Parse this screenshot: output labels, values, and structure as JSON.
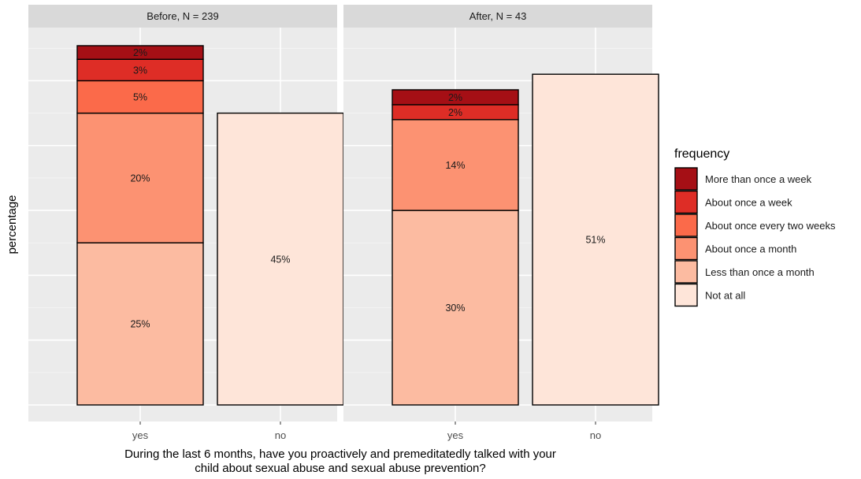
{
  "chart_data": {
    "type": "bar",
    "stacked": true,
    "ylabel": "percentage",
    "xlabel_lines": [
      "During the last 6 months, have you proactively and premeditatedly talked with your",
      "child about sexual abuse and sexual abuse prevention?"
    ],
    "categories": [
      "yes",
      "no"
    ],
    "ylim": [
      0,
      56
    ],
    "legend": {
      "title": "frequency",
      "position": "right",
      "entries": [
        {
          "label": "More than once a week",
          "color": "#A50F15"
        },
        {
          "label": "About once a week",
          "color": "#DE2D26"
        },
        {
          "label": "About once every two weeks",
          "color": "#FB6A4A"
        },
        {
          "label": "About once a month",
          "color": "#FC9272"
        },
        {
          "label": "Less than once a month",
          "color": "#FCBBA1"
        },
        {
          "label": "Not at all",
          "color": "#FEE5D9"
        }
      ]
    },
    "panels": [
      {
        "title": "Before, N = 239",
        "bars": [
          {
            "category": "yes",
            "segments": [
              {
                "level": "Less than once a month",
                "value": 25,
                "label": "25%"
              },
              {
                "level": "About once a month",
                "value": 20,
                "label": "20%"
              },
              {
                "level": "About once every two weeks",
                "value": 5,
                "label": "5%"
              },
              {
                "level": "About once a week",
                "value": 3.3,
                "label": "3%"
              },
              {
                "level": "More than once a week",
                "value": 2.1,
                "label": "2%"
              }
            ]
          },
          {
            "category": "no",
            "segments": [
              {
                "level": "Not at all",
                "value": 45,
                "label": "45%"
              }
            ]
          }
        ]
      },
      {
        "title": "After, N = 43",
        "bars": [
          {
            "category": "yes",
            "segments": [
              {
                "level": "Less than once a month",
                "value": 30,
                "label": "30%"
              },
              {
                "level": "About once a month",
                "value": 14,
                "label": "14%"
              },
              {
                "level": "About once a week",
                "value": 2.3,
                "label": "2%"
              },
              {
                "level": "More than once a week",
                "value": 2.3,
                "label": "2%"
              }
            ]
          },
          {
            "category": "no",
            "segments": [
              {
                "level": "Not at all",
                "value": 51,
                "label": "51%"
              }
            ]
          }
        ]
      }
    ]
  }
}
